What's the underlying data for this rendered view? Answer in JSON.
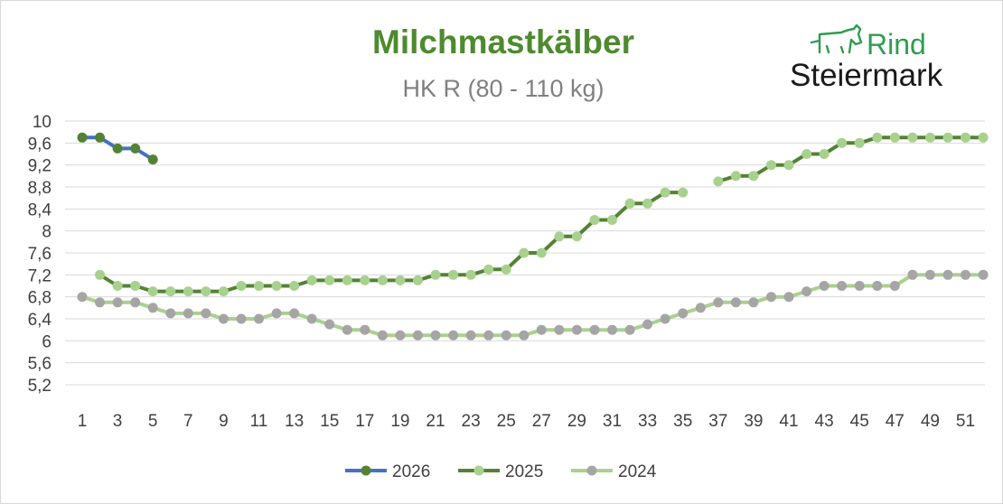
{
  "logo": {
    "word1": "Rind",
    "word2": "Steiermark",
    "green": "#2e9d4f",
    "dark": "#1a1a1a"
  },
  "chart_data": {
    "type": "line",
    "title": "Milchmastkälber",
    "subtitle": "HK R (80 - 110 kg)",
    "title_color": "#4e8a2f",
    "subtitle_color": "#808080",
    "ylim": [
      5.2,
      10
    ],
    "yticks": [
      "5,2",
      "5,6",
      "6",
      "6,4",
      "6,8",
      "7,2",
      "7,6",
      "8",
      "8,4",
      "8,8",
      "9,2",
      "9,6",
      "10"
    ],
    "ytick_values": [
      5.2,
      5.6,
      6.0,
      6.4,
      6.8,
      7.2,
      7.6,
      8.0,
      8.4,
      8.8,
      9.2,
      9.6,
      10.0
    ],
    "xlim": [
      1,
      52
    ],
    "xticks": [
      1,
      3,
      5,
      7,
      9,
      11,
      13,
      15,
      17,
      19,
      21,
      23,
      25,
      27,
      29,
      31,
      33,
      35,
      37,
      39,
      41,
      43,
      45,
      47,
      49,
      51
    ],
    "grid": true,
    "legend_position": "bottom",
    "series": [
      {
        "name": "2024",
        "line_color": "#a9d18e",
        "marker_color": "#a5a5a5",
        "values": [
          6.8,
          6.7,
          6.7,
          6.7,
          6.6,
          6.5,
          6.5,
          6.5,
          6.4,
          6.4,
          6.4,
          6.5,
          6.5,
          6.4,
          6.3,
          6.2,
          6.2,
          6.1,
          6.1,
          6.1,
          6.1,
          6.1,
          6.1,
          6.1,
          6.1,
          6.1,
          6.2,
          6.2,
          6.2,
          6.2,
          6.2,
          6.2,
          6.3,
          6.4,
          6.5,
          6.6,
          6.7,
          6.7,
          6.7,
          6.8,
          6.8,
          6.9,
          7.0,
          7.0,
          7.0,
          7.0,
          7.0,
          7.2,
          7.2,
          7.2,
          7.2,
          7.2
        ]
      },
      {
        "name": "2025",
        "line_color": "#548235",
        "marker_color": "#a9d18e",
        "values": [
          null,
          7.2,
          7.0,
          7.0,
          6.9,
          6.9,
          6.9,
          6.9,
          6.9,
          7.0,
          7.0,
          7.0,
          7.0,
          7.1,
          7.1,
          7.1,
          7.1,
          7.1,
          7.1,
          7.1,
          7.2,
          7.2,
          7.2,
          7.3,
          7.3,
          7.6,
          7.6,
          7.9,
          7.9,
          8.2,
          8.2,
          8.5,
          8.5,
          8.7,
          8.7,
          null,
          8.9,
          9.0,
          9.0,
          9.2,
          9.2,
          9.4,
          9.4,
          9.6,
          9.6,
          9.7,
          9.7,
          9.7,
          9.7,
          9.7,
          9.7,
          9.7
        ]
      },
      {
        "name": "2026",
        "line_color": "#4472c4",
        "marker_color": "#548235",
        "values": [
          9.7,
          9.7,
          9.5,
          9.5,
          9.3
        ]
      }
    ],
    "legend_order": [
      "2026",
      "2025",
      "2024"
    ]
  }
}
